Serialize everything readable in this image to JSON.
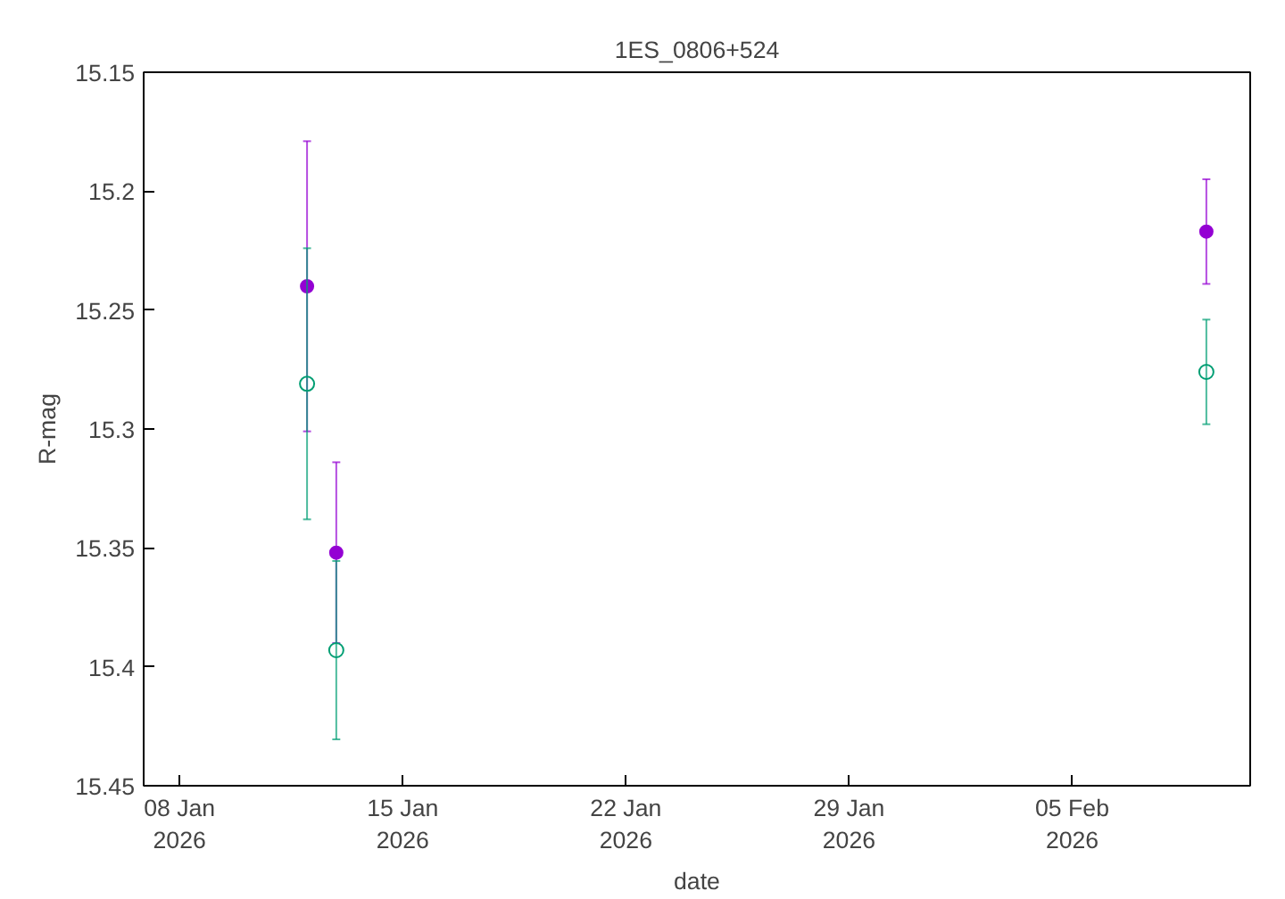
{
  "chart_data": {
    "type": "scatter",
    "title": "1ES_0806+524",
    "xlabel": "date",
    "ylabel": "R-mag",
    "xlim": [
      "2026-01-06T21:00",
      "2026-02-10T14:00"
    ],
    "xticks": [
      {
        "value": "2026-01-08",
        "label": "08 Jan\n2026"
      },
      {
        "value": "2026-01-15",
        "label": "15 Jan\n2026"
      },
      {
        "value": "2026-01-22",
        "label": "22 Jan\n2026"
      },
      {
        "value": "2026-01-29",
        "label": "29 Jan\n2026"
      },
      {
        "value": "2026-02-05",
        "label": "05 Feb\n2026"
      }
    ],
    "ylim": [
      15.45,
      15.15
    ],
    "yticks": [
      15.15,
      15.2,
      15.25,
      15.3,
      15.35,
      15.4,
      15.45
    ],
    "grid": false,
    "series": [
      {
        "color": "#9400d3",
        "marker": "circle",
        "x": [
          "2026-01-12T00:00",
          "2026-01-12T22:00",
          "2026-02-09T05:00"
        ],
        "values": [
          15.24,
          15.352,
          15.217
        ],
        "errors": [
          0.061,
          0.038,
          0.022
        ]
      },
      {
        "color": "#009e73",
        "marker": "open_circle",
        "x": [
          "2026-01-12T00:00",
          "2026-01-12T22:00",
          "2026-02-09T05:00"
        ],
        "values": [
          15.281,
          15.393,
          15.276
        ],
        "errors": [
          0.057,
          0.0375,
          0.022
        ]
      }
    ]
  }
}
